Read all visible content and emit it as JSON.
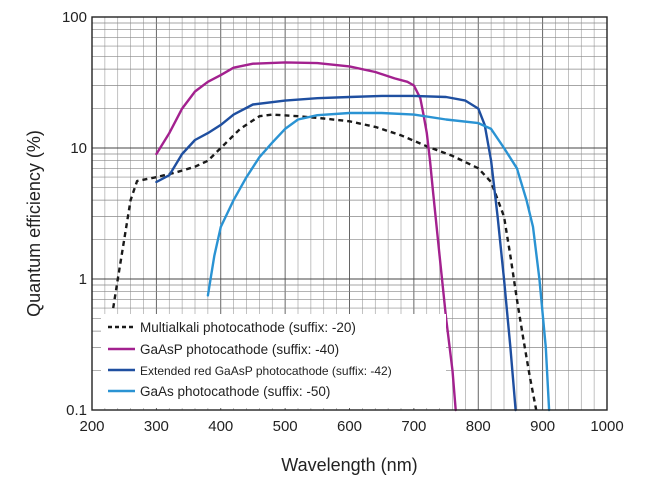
{
  "chart_data": {
    "type": "line",
    "xlabel": "Wavelength (nm)",
    "ylabel": "Quantum efficiency (%)",
    "xlim": [
      200,
      1000
    ],
    "ylim": [
      0.1,
      100
    ],
    "yscale": "log",
    "grid": true,
    "legend_placement": "bottom-left",
    "x_ticks": [
      "200",
      "300",
      "400",
      "500",
      "600",
      "700",
      "800",
      "900",
      "1000"
    ],
    "y_ticks": [
      "0.1",
      "1",
      "10",
      "100"
    ],
    "series": [
      {
        "name": "Multialkali photocathode (suffix: -20)",
        "color": "#1a1a1a",
        "style": "dashed",
        "points": [
          [
            233,
            0.6
          ],
          [
            240,
            1.0
          ],
          [
            250,
            2.0
          ],
          [
            260,
            4.0
          ],
          [
            270,
            5.6
          ],
          [
            300,
            6.0
          ],
          [
            330,
            6.5
          ],
          [
            360,
            7.2
          ],
          [
            380,
            8.0
          ],
          [
            400,
            10.0
          ],
          [
            430,
            14.0
          ],
          [
            460,
            17.5
          ],
          [
            480,
            18.0
          ],
          [
            520,
            17.5
          ],
          [
            560,
            16.8
          ],
          [
            600,
            16.0
          ],
          [
            640,
            14.5
          ],
          [
            680,
            12.5
          ],
          [
            720,
            10.3
          ],
          [
            760,
            8.7
          ],
          [
            800,
            7.0
          ],
          [
            820,
            5.5
          ],
          [
            840,
            3.0
          ],
          [
            850,
            1.5
          ],
          [
            860,
            0.7
          ],
          [
            870,
            0.35
          ],
          [
            880,
            0.18
          ],
          [
            890,
            0.1
          ]
        ]
      },
      {
        "name": "GaAsP photocathode (suffix: -40)",
        "color": "#a3218f",
        "style": "solid",
        "points": [
          [
            300,
            9.0
          ],
          [
            320,
            13.0
          ],
          [
            340,
            20.0
          ],
          [
            360,
            27.0
          ],
          [
            380,
            32.0
          ],
          [
            400,
            36.0
          ],
          [
            420,
            41.0
          ],
          [
            450,
            44.0
          ],
          [
            500,
            45.0
          ],
          [
            550,
            44.5
          ],
          [
            600,
            42.0
          ],
          [
            640,
            38.0
          ],
          [
            670,
            34.0
          ],
          [
            690,
            32.0
          ],
          [
            700,
            30.0
          ],
          [
            710,
            24.0
          ],
          [
            715,
            18.0
          ],
          [
            720,
            13.0
          ],
          [
            725,
            8.0
          ],
          [
            730,
            4.5
          ],
          [
            740,
            1.5
          ],
          [
            750,
            0.5
          ],
          [
            760,
            0.2
          ],
          [
            765,
            0.1
          ]
        ]
      },
      {
        "name": "Extended red GaAsP photocathode (suffix: -42)",
        "color": "#1f4fa0",
        "style": "solid",
        "points": [
          [
            300,
            5.5
          ],
          [
            320,
            6.2
          ],
          [
            340,
            9.0
          ],
          [
            360,
            11.5
          ],
          [
            380,
            13.0
          ],
          [
            400,
            15.0
          ],
          [
            420,
            18.0
          ],
          [
            450,
            21.5
          ],
          [
            500,
            23.0
          ],
          [
            550,
            24.0
          ],
          [
            600,
            24.5
          ],
          [
            650,
            25.0
          ],
          [
            700,
            25.0
          ],
          [
            750,
            24.5
          ],
          [
            780,
            23.0
          ],
          [
            800,
            20.0
          ],
          [
            810,
            15.0
          ],
          [
            820,
            8.0
          ],
          [
            830,
            3.0
          ],
          [
            840,
            1.0
          ],
          [
            850,
            0.3
          ],
          [
            855,
            0.15
          ],
          [
            858,
            0.1
          ]
        ]
      },
      {
        "name": "GaAs photocathode (suffix: -50)",
        "color": "#2a93d3",
        "style": "solid",
        "points": [
          [
            380,
            0.75
          ],
          [
            390,
            1.5
          ],
          [
            400,
            2.5
          ],
          [
            420,
            4.0
          ],
          [
            440,
            6.0
          ],
          [
            460,
            8.5
          ],
          [
            480,
            11.0
          ],
          [
            500,
            14.0
          ],
          [
            520,
            16.5
          ],
          [
            550,
            17.8
          ],
          [
            600,
            18.5
          ],
          [
            650,
            18.5
          ],
          [
            700,
            18.0
          ],
          [
            750,
            16.5
          ],
          [
            800,
            15.5
          ],
          [
            820,
            14.0
          ],
          [
            840,
            10.0
          ],
          [
            860,
            7.0
          ],
          [
            875,
            4.0
          ],
          [
            885,
            2.5
          ],
          [
            895,
            1.0
          ],
          [
            905,
            0.3
          ],
          [
            910,
            0.1
          ]
        ]
      }
    ]
  }
}
